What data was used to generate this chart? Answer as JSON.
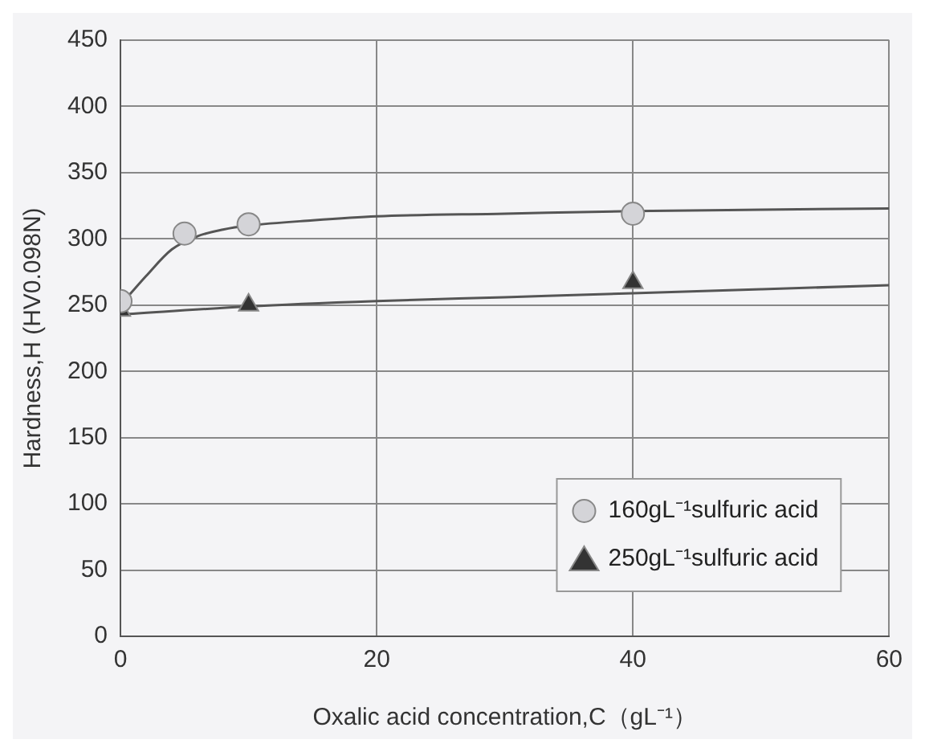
{
  "chart_data": {
    "type": "scatter",
    "xlabel": "Oxalic acid concentration,C（gL⁻¹）",
    "ylabel": "Hardness,H (HV0.098N)",
    "xlim": [
      0,
      60
    ],
    "xticks": [
      0,
      20,
      40,
      60
    ],
    "ylim": [
      0,
      450
    ],
    "yticks": [
      0,
      50,
      100,
      150,
      200,
      250,
      300,
      350,
      400,
      450
    ],
    "grid": true,
    "legend": "bottom right",
    "series": [
      {
        "name": "160gL⁻¹sulfuric acid",
        "marker": "circle",
        "color": "#d4d4d8",
        "x": [
          0,
          5,
          10,
          40
        ],
        "values": [
          253,
          304,
          311,
          319
        ]
      },
      {
        "name": "250gL⁻¹sulfuric acid",
        "marker": "triangle",
        "color": "#333333",
        "x": [
          0,
          10,
          40
        ],
        "values": [
          246,
          250,
          267
        ]
      },
      {
        "type": "line",
        "marker": "none",
        "color": "#555555",
        "x": [
          0,
          2,
          4,
          6,
          8,
          10,
          15,
          20,
          30,
          40,
          50,
          60
        ],
        "values": [
          250,
          272,
          292,
          302,
          307,
          310,
          314,
          317,
          319,
          321,
          322,
          323
        ]
      },
      {
        "type": "line",
        "marker": "none",
        "color": "#555555",
        "x": [
          0,
          10,
          20,
          30,
          40,
          50,
          60
        ],
        "values": [
          243,
          249,
          253,
          256,
          259,
          262,
          265
        ]
      }
    ]
  }
}
